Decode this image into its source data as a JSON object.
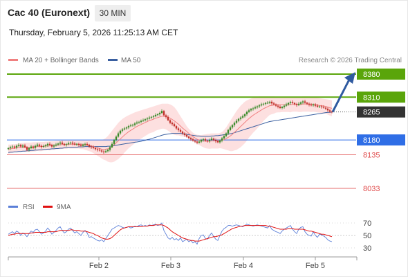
{
  "header": {
    "title": "Cac 40 (Euronext)",
    "timeframe": "30 MIN",
    "datetime": "Thursday, February 5, 2026 11:25:13 AM CET"
  },
  "legend": {
    "ma20_label": "MA 20 + Bollinger Bands",
    "ma50_label": "MA 50",
    "copyright": "Research © 2026 Trading Central",
    "rsi_label": "RSI",
    "rsi_ma_label": "9MA"
  },
  "colors": {
    "green_level": "#5aa50a",
    "blue_level": "#2f6ee6",
    "red_level": "#e04b4b",
    "current_price": "#333333",
    "ma20": "#f08080",
    "ma50": "#3a5fa0",
    "bollinger_fill": "#fde0e0",
    "candle_up": "#3a8a2a",
    "candle_down": "#c0302a",
    "arrow": "#2f5aa0",
    "rsi": "#5b7fd8",
    "rsi_ma": "#e01010"
  },
  "chart_data": [
    {
      "type": "candlestick",
      "title": "Cac 40 (Euronext)",
      "timeframe": "30 MIN",
      "x_ticks": [
        "Feb 2",
        "Feb 3",
        "Feb 4",
        "Feb 5"
      ],
      "ylim": [
        8000,
        8400
      ],
      "levels": [
        {
          "value": 8380,
          "label": "8380",
          "kind": "resistance",
          "style": "green-box"
        },
        {
          "value": 8310,
          "label": "8310",
          "kind": "resistance",
          "style": "green-box"
        },
        {
          "value": 8265,
          "label": "8265",
          "kind": "current",
          "style": "dark-box"
        },
        {
          "value": 8180,
          "label": "8180",
          "kind": "pivot",
          "style": "blue-box"
        },
        {
          "value": 8135,
          "label": "8135",
          "kind": "support",
          "style": "red-text"
        },
        {
          "value": 8033,
          "label": "8033",
          "kind": "support",
          "style": "red-text"
        }
      ],
      "close": [
        8155,
        8158,
        8160,
        8157,
        8162,
        8165,
        8160,
        8163,
        8158,
        8150,
        8155,
        8160,
        8156,
        8162,
        8166,
        8162,
        8159,
        8161,
        8164,
        8168,
        8165,
        8160,
        8163,
        8166,
        8169,
        8172,
        8168,
        8165,
        8167,
        8170,
        8172,
        8169,
        8166,
        8168,
        8165,
        8162,
        8166,
        8168,
        8165,
        8160,
        8158,
        8155,
        8152,
        8150,
        8148,
        8145,
        8143,
        8146,
        8150,
        8158,
        8168,
        8180,
        8190,
        8200,
        8208,
        8212,
        8215,
        8218,
        8222,
        8224,
        8226,
        8230,
        8233,
        8235,
        8238,
        8240,
        8243,
        8245,
        8248,
        8250,
        8252,
        8256,
        8258,
        8262,
        8268,
        8255,
        8250,
        8240,
        8232,
        8228,
        8222,
        8215,
        8210,
        8205,
        8200,
        8195,
        8190,
        8186,
        8182,
        8178,
        8175,
        8172,
        8175,
        8180,
        8182,
        8178,
        8176,
        8180,
        8184,
        8180,
        8176,
        8173,
        8178,
        8185,
        8192,
        8200,
        8210,
        8218,
        8225,
        8232,
        8238,
        8244,
        8248,
        8252,
        8258,
        8265,
        8270,
        8274,
        8276,
        8279,
        8282,
        8285,
        8288,
        8290,
        8292,
        8293,
        8296,
        8291,
        8288,
        8284,
        8281,
        8277,
        8280,
        8284,
        8288,
        8292,
        8295,
        8292,
        8289,
        8286,
        8290,
        8294,
        8297,
        8293,
        8290,
        8287,
        8285,
        8288,
        8284,
        8281,
        8282,
        8280,
        8278,
        8275,
        8270,
        8266,
        8265
      ],
      "ma20": [
        8152,
        8153,
        8154,
        8155,
        8156,
        8157,
        8157,
        8158,
        8158,
        8158,
        8158,
        8158,
        8159,
        8159,
        8160,
        8160,
        8160,
        8161,
        8162,
        8162,
        8162,
        8163,
        8163,
        8164,
        8165,
        8165,
        8166,
        8166,
        8166,
        8167,
        8167,
        8167,
        8167,
        8167,
        8167,
        8166,
        8166,
        8165,
        8164,
        8163,
        8162,
        8160,
        8158,
        8156,
        8154,
        8152,
        8151,
        8152,
        8153,
        8156,
        8160,
        8165,
        8171,
        8177,
        8183,
        8189,
        8195,
        8200,
        8205,
        8209,
        8213,
        8217,
        8221,
        8224,
        8227,
        8230,
        8233,
        8236,
        8239,
        8241,
        8243,
        8246,
        8248,
        8250,
        8252,
        8252,
        8251,
        8249,
        8246,
        8242,
        8238,
        8233,
        8228,
        8222,
        8216,
        8211,
        8206,
        8200,
        8195,
        8190,
        8186,
        8182,
        8180,
        8178,
        8177,
        8176,
        8176,
        8176,
        8177,
        8177,
        8177,
        8177,
        8178,
        8179,
        8181,
        8184,
        8188,
        8192,
        8197,
        8203,
        8209,
        8215,
        8221,
        8227,
        8233,
        8239,
        8245,
        8250,
        8255,
        8259,
        8263,
        8267,
        8271,
        8275,
        8278,
        8281,
        8284,
        8285,
        8286,
        8287,
        8287,
        8287,
        8287,
        8287,
        8287,
        8287,
        8287,
        8288,
        8288,
        8288,
        8288,
        8288,
        8289,
        8289,
        8289,
        8289,
        8288,
        8288,
        8287,
        8286,
        8285,
        8284,
        8283,
        8282,
        8280,
        8278,
        8276
      ],
      "bollinger_upper": [
        8166,
        8166,
        8167,
        8167,
        8168,
        8169,
        8170,
        8171,
        8172,
        8172,
        8172,
        8172,
        8173,
        8173,
        8173,
        8174,
        8174,
        8174,
        8175,
        8175,
        8176,
        8176,
        8176,
        8177,
        8178,
        8178,
        8179,
        8179,
        8179,
        8179,
        8180,
        8180,
        8180,
        8180,
        8180,
        8180,
        8180,
        8180,
        8180,
        8180,
        8180,
        8180,
        8180,
        8180,
        8180,
        8180,
        8182,
        8186,
        8192,
        8200,
        8208,
        8216,
        8224,
        8232,
        8238,
        8244,
        8248,
        8252,
        8255,
        8258,
        8261,
        8264,
        8266,
        8268,
        8270,
        8272,
        8274,
        8276,
        8278,
        8280,
        8282,
        8284,
        8286,
        8288,
        8290,
        8290,
        8290,
        8290,
        8288,
        8285,
        8280,
        8272,
        8262,
        8252,
        8242,
        8232,
        8222,
        8214,
        8208,
        8202,
        8198,
        8196,
        8195,
        8195,
        8196,
        8197,
        8198,
        8199,
        8200,
        8200,
        8200,
        8200,
        8201,
        8204,
        8210,
        8218,
        8228,
        8238,
        8248,
        8258,
        8268,
        8276,
        8284,
        8290,
        8296,
        8300,
        8303,
        8306,
        8308,
        8310,
        8311,
        8312,
        8312,
        8312,
        8312,
        8312,
        8312,
        8312,
        8312,
        8311,
        8310,
        8310,
        8309,
        8309,
        8309,
        8309,
        8310,
        8310,
        8310,
        8310,
        8311,
        8311,
        8312,
        8312,
        8312,
        8312,
        8311,
        8310,
        8309,
        8308,
        8307,
        8306,
        8305,
        8304,
        8303,
        8302,
        8300
      ],
      "bollinger_lower": [
        8138,
        8140,
        8141,
        8143,
        8144,
        8145,
        8144,
        8145,
        8144,
        8144,
        8144,
        8144,
        8145,
        8145,
        8147,
        8146,
        8146,
        8148,
        8149,
        8149,
        8148,
        8150,
        8150,
        8151,
        8152,
        8152,
        8153,
        8153,
        8153,
        8155,
        8154,
        8154,
        8154,
        8154,
        8154,
        8152,
        8152,
        8150,
        8148,
        8146,
        8144,
        8140,
        8136,
        8132,
        8128,
        8124,
        8120,
        8118,
        8114,
        8112,
        8112,
        8114,
        8118,
        8122,
        8128,
        8134,
        8142,
        8148,
        8155,
        8160,
        8165,
        8170,
        8176,
        8180,
        8184,
        8188,
        8192,
        8196,
        8200,
        8202,
        8204,
        8208,
        8210,
        8212,
        8214,
        8214,
        8212,
        8208,
        8204,
        8199,
        8196,
        8194,
        8194,
        8192,
        8190,
        8190,
        8190,
        8186,
        8182,
        8178,
        8174,
        8168,
        8165,
        8161,
        8158,
        8155,
        8154,
        8153,
        8154,
        8154,
        8154,
        8154,
        8155,
        8154,
        8152,
        8150,
        8148,
        8146,
        8146,
        8148,
        8150,
        8154,
        8158,
        8164,
        8170,
        8178,
        8187,
        8194,
        8202,
        8208,
        8215,
        8222,
        8230,
        8238,
        8244,
        8250,
        8256,
        8258,
        8260,
        8263,
        8264,
        8264,
        8265,
        8265,
        8265,
        8265,
        8264,
        8266,
        8266,
        8266,
        8265,
        8265,
        8266,
        8266,
        8266,
        8266,
        8265,
        8266,
        8265,
        8264,
        8263,
        8262,
        8261,
        8260,
        8257,
        8254,
        8252
      ],
      "ma50": [
        8142,
        8143,
        8143,
        8144,
        8144,
        8145,
        8145,
        8146,
        8146,
        8147,
        8147,
        8148,
        8148,
        8149,
        8149,
        8150,
        8150,
        8151,
        8151,
        8152,
        8152,
        8153,
        8153,
        8154,
        8154,
        8155,
        8155,
        8156,
        8156,
        8157,
        8157,
        8158,
        8158,
        8158,
        8159,
        8159,
        8159,
        8160,
        8160,
        8160,
        8160,
        8160,
        8160,
        8160,
        8160,
        8160,
        8160,
        8160,
        8161,
        8161,
        8162,
        8163,
        8164,
        8165,
        8166,
        8167,
        8168,
        8169,
        8170,
        8171,
        8172,
        8173,
        8174,
        8175,
        8176,
        8178,
        8179,
        8181,
        8182,
        8184,
        8186,
        8188,
        8190,
        8192,
        8194,
        8196,
        8197,
        8198,
        8199,
        8200,
        8200,
        8200,
        8200,
        8200,
        8199,
        8198,
        8197,
        8196,
        8195,
        8194,
        8193,
        8192,
        8192,
        8191,
        8191,
        8191,
        8191,
        8191,
        8192,
        8192,
        8193,
        8193,
        8194,
        8195,
        8196,
        8197,
        8198,
        8199,
        8200,
        8202,
        8204,
        8206,
        8208,
        8210,
        8212,
        8214,
        8216,
        8218,
        8220,
        8222,
        8224,
        8226,
        8228,
        8230,
        8232,
        8234,
        8236,
        8237,
        8238,
        8239,
        8240,
        8241,
        8242,
        8243,
        8244,
        8245,
        8246,
        8247,
        8248,
        8249,
        8250,
        8251,
        8252,
        8253,
        8254,
        8255,
        8256,
        8257,
        8258,
        8259,
        8260,
        8261,
        8262,
        8263,
        8264,
        8264,
        8265
      ]
    },
    {
      "type": "line",
      "title": "RSI",
      "ylim": [
        20,
        80
      ],
      "y_ticks": [
        70,
        50,
        30
      ],
      "series": [
        {
          "name": "RSI",
          "values": [
            52,
            54,
            56,
            53,
            57,
            55,
            50,
            54,
            52,
            48,
            53,
            57,
            55,
            59,
            60,
            56,
            52,
            54,
            57,
            62,
            58,
            52,
            55,
            58,
            62,
            64,
            58,
            54,
            56,
            60,
            62,
            58,
            54,
            56,
            53,
            50,
            55,
            58,
            54,
            47,
            48,
            46,
            44,
            42,
            41,
            43,
            40,
            45,
            50,
            55,
            60,
            62,
            64,
            66,
            65,
            63,
            62,
            63,
            64,
            62,
            63,
            65,
            64,
            66,
            67,
            65,
            66,
            65,
            67,
            66,
            67,
            68,
            66,
            67,
            70,
            58,
            52,
            46,
            44,
            47,
            43,
            45,
            42,
            46,
            40,
            42,
            44,
            40,
            42,
            38,
            40,
            36,
            45,
            50,
            51,
            45,
            44,
            50,
            54,
            48,
            44,
            42,
            50,
            57,
            61,
            63,
            66,
            66,
            65,
            66,
            67,
            66,
            65,
            64,
            66,
            68,
            67,
            66,
            65,
            66,
            67,
            66,
            65,
            64,
            63,
            62,
            66,
            60,
            58,
            56,
            55,
            53,
            57,
            60,
            62,
            64,
            66,
            60,
            56,
            53,
            60,
            63,
            64,
            56,
            52,
            50,
            49,
            56,
            50,
            47,
            52,
            51,
            49,
            47,
            43,
            41,
            40
          ]
        },
        {
          "name": "9MA",
          "values": [
            50,
            51,
            52,
            52,
            53,
            53,
            53,
            53,
            53,
            53,
            53,
            54,
            54,
            55,
            55,
            55,
            55,
            55,
            55,
            56,
            56,
            56,
            56,
            56,
            57,
            58,
            58,
            58,
            58,
            58,
            59,
            59,
            58,
            58,
            58,
            57,
            57,
            57,
            56,
            55,
            54,
            53,
            51,
            50,
            48,
            46,
            45,
            44,
            44,
            45,
            47,
            50,
            53,
            56,
            59,
            61,
            62,
            63,
            64,
            64,
            64,
            64,
            64,
            64,
            64,
            65,
            65,
            65,
            66,
            66,
            66,
            67,
            67,
            67,
            67,
            66,
            64,
            62,
            59,
            56,
            54,
            52,
            50,
            48,
            46,
            45,
            44,
            43,
            42,
            42,
            41,
            41,
            41,
            42,
            43,
            44,
            45,
            46,
            47,
            48,
            48,
            49,
            50,
            51,
            53,
            55,
            57,
            59,
            61,
            62,
            63,
            64,
            65,
            65,
            66,
            66,
            66,
            66,
            66,
            66,
            66,
            66,
            66,
            66,
            66,
            65,
            65,
            64,
            63,
            62,
            61,
            60,
            60,
            60,
            60,
            61,
            61,
            61,
            60,
            60,
            60,
            60,
            60,
            59,
            58,
            57,
            57,
            56,
            55,
            54,
            53,
            52,
            52,
            51,
            50,
            49,
            48
          ]
        }
      ]
    }
  ]
}
